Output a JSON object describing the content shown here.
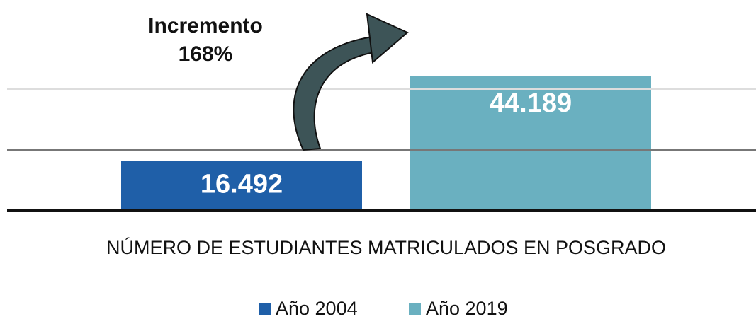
{
  "chart_data": {
    "type": "bar",
    "annotation": [
      "Incremento",
      "168%"
    ],
    "categories": [
      "NÚMERO DE ESTUDIANTES MATRICULADOS EN POSGRADO"
    ],
    "series": [
      {
        "name": "Año 2004",
        "color": "#1f5fa8",
        "values": [
          16492
        ],
        "value_labels": [
          "16.492"
        ]
      },
      {
        "name": "Año 2019",
        "color": "#6ab0c0",
        "values": [
          44189
        ],
        "value_labels": [
          "44.189"
        ]
      }
    ],
    "ylim": [
      0,
      50000
    ],
    "yticks": [
      0,
      20000,
      40000
    ],
    "grid": true,
    "legend": "bottom"
  }
}
